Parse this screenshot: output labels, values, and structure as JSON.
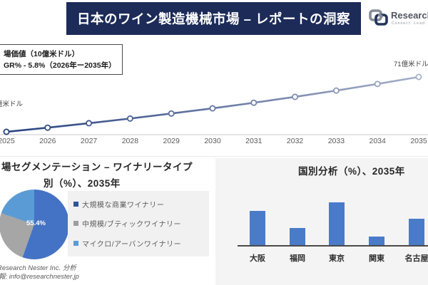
{
  "header": {
    "title": "日本のワイン製造機械市場 – レポートの洞察",
    "logo_brand": "Research",
    "logo_tagline": "Connect. Lead."
  },
  "info_box": {
    "line1": "場価値（10億米ドル）",
    "line2": "GR% - 5.8%（2026年ー2035年）"
  },
  "line_section": {
    "start_axis_label": "億米ドル",
    "end_value_label": "71億米ドル"
  },
  "pie_section": {
    "title_line1": "場セグメンテーション – ワイナリータイプ",
    "title_line2": "別（%）、2035年",
    "slice_label": "55.4%"
  },
  "bar_section": {
    "title": "国別分析（%）、2035年"
  },
  "footer": {
    "line1": "Research Nester Inc. 分析",
    "line2": "報: info@researchnester.jp"
  },
  "colors": {
    "header_navy": "#1c2b58",
    "line_gradient_start": "#24407e",
    "line_gradient_end": "#a9b2c9",
    "axis_gray": "#dcdcdc",
    "bar_blue": "#4a7bc8",
    "pie_blue": "#4472c4",
    "pie_gray": "#a6a6a6",
    "pie_lightblue": "#5b9bd5",
    "legend_navy": "#2f5597",
    "legend_gray": "#9e9e9e",
    "legend_blue": "#5b9bd5"
  },
  "chart_data": [
    {
      "type": "line",
      "title": "",
      "x": [
        2025,
        2026,
        2027,
        2028,
        2029,
        2030,
        2031,
        2032,
        2033,
        2034,
        2035
      ],
      "series": [
        {
          "name": "市場価値（10億米ドル）",
          "values": [
            40.4,
            42.7,
            45.2,
            47.8,
            50.6,
            53.5,
            56.6,
            59.9,
            63.4,
            67.1,
            71.0
          ]
        }
      ],
      "annotations": [
        "71億米ドル"
      ],
      "cagr_pct": 5.8,
      "ylim": [
        38,
        73
      ],
      "grid": false,
      "legend_position": "none"
    },
    {
      "type": "pie",
      "title": "場セグメンテーション – ワイナリータイプ 別（%）、2035年",
      "labels": [
        "大規模な商業ワイナリー",
        "中規模/ブティックワイナリー",
        "マイクロ/アーバンワイナリー"
      ],
      "values": [
        55.4,
        24.9,
        19.7
      ],
      "shown_label": "55.4%",
      "legend_position": "right"
    },
    {
      "type": "bar",
      "title": "国別分析（%）、2035年",
      "categories": [
        "大阪",
        "福岡",
        "東京",
        "関東",
        "名古屋"
      ],
      "values_pct_of_max": [
        80,
        40,
        100,
        20,
        62
      ],
      "grid": false,
      "legend_position": "none"
    }
  ]
}
